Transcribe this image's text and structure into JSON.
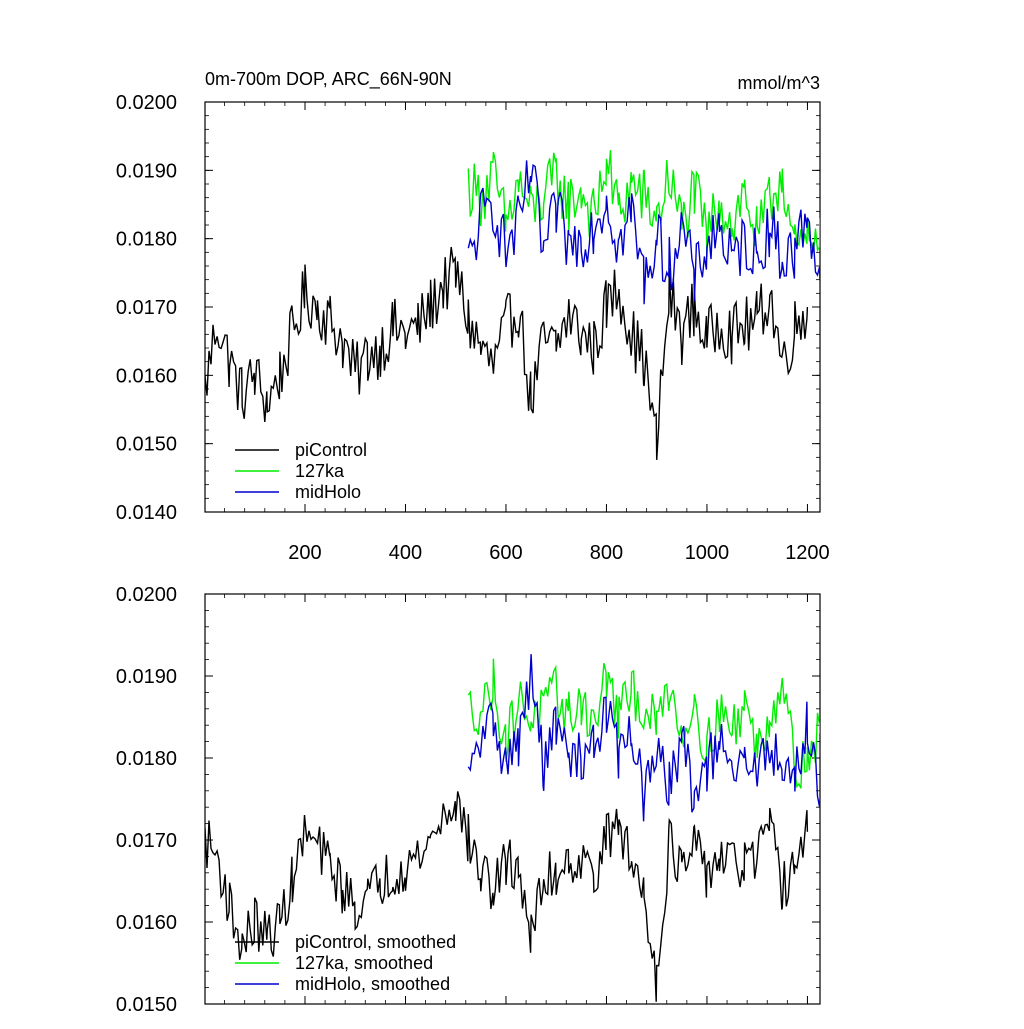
{
  "chart_data": [
    {
      "type": "line",
      "title": "0m-700m DOP, ARC_66N-90N",
      "units_label": "mmol/m^3",
      "xlim": [
        1,
        1225
      ],
      "ylim": [
        0.014,
        0.02
      ],
      "x_ticks": [
        200,
        400,
        600,
        800,
        1000,
        1200
      ],
      "x_tick_labels": [
        "200",
        "400",
        "600",
        "800",
        "1000",
        "1200"
      ],
      "y_ticks": [
        0.014,
        0.015,
        0.016,
        0.017,
        0.018,
        0.019,
        0.02
      ],
      "y_tick_labels": [
        "0.0140",
        "0.0150",
        "0.0160",
        "0.0170",
        "0.0180",
        "0.0190",
        "0.0200"
      ],
      "legend_position": "bottom-left",
      "series": [
        {
          "name": "piControl",
          "color": "#000000",
          "x": [
            1,
            25,
            50,
            75,
            100,
            125,
            150,
            175,
            200,
            225,
            250,
            275,
            300,
            325,
            350,
            375,
            400,
            425,
            450,
            475,
            500,
            525,
            550,
            575,
            600,
            625,
            650,
            675,
            700,
            725,
            750,
            775,
            800,
            825,
            850,
            875,
            900,
            925,
            950,
            975,
            1000,
            1025,
            1050,
            1075,
            1100,
            1125,
            1150,
            1175,
            1200
          ],
          "values": [
            0.0158,
            0.0168,
            0.0162,
            0.0157,
            0.016,
            0.0156,
            0.016,
            0.0166,
            0.0172,
            0.017,
            0.0168,
            0.0165,
            0.016,
            0.0163,
            0.0164,
            0.0167,
            0.0166,
            0.0167,
            0.017,
            0.0173,
            0.0175,
            0.0168,
            0.0164,
            0.0161,
            0.0167,
            0.017,
            0.0156,
            0.0165,
            0.0164,
            0.0169,
            0.0166,
            0.0164,
            0.017,
            0.0173,
            0.0166,
            0.0162,
            0.015,
            0.0172,
            0.0166,
            0.017,
            0.0165,
            0.0168,
            0.0166,
            0.0167,
            0.0168,
            0.0172,
            0.0162,
            0.0167,
            0.017
          ]
        },
        {
          "name": "127ka",
          "color": "#00ee00",
          "x": [
            525,
            550,
            575,
            600,
            625,
            650,
            675,
            700,
            725,
            750,
            775,
            800,
            825,
            850,
            875,
            900,
            925,
            950,
            975,
            1000,
            1025,
            1050,
            1075,
            1100,
            1125,
            1150,
            1175,
            1200,
            1225
          ],
          "values": [
            0.0188,
            0.0186,
            0.0189,
            0.0182,
            0.0188,
            0.0184,
            0.0186,
            0.0189,
            0.0185,
            0.0187,
            0.0183,
            0.0191,
            0.0184,
            0.0188,
            0.0186,
            0.0183,
            0.0189,
            0.0182,
            0.0187,
            0.018,
            0.0186,
            0.0182,
            0.0187,
            0.018,
            0.0185,
            0.019,
            0.0178,
            0.0179,
            0.0183
          ]
        },
        {
          "name": "midHolo",
          "color": "#0000cc",
          "x": [
            525,
            550,
            575,
            600,
            625,
            650,
            675,
            700,
            725,
            750,
            775,
            800,
            825,
            850,
            875,
            900,
            925,
            950,
            975,
            1000,
            1025,
            1050,
            1075,
            1100,
            1125,
            1150,
            1175,
            1200,
            1225
          ],
          "values": [
            0.0176,
            0.0183,
            0.0185,
            0.0178,
            0.0182,
            0.019,
            0.0178,
            0.0184,
            0.0179,
            0.018,
            0.0182,
            0.0186,
            0.0179,
            0.0184,
            0.0174,
            0.018,
            0.0176,
            0.0182,
            0.0174,
            0.0179,
            0.0182,
            0.0176,
            0.018,
            0.0177,
            0.0182,
            0.0177,
            0.0178,
            0.0184,
            0.0174
          ]
        }
      ]
    },
    {
      "type": "line",
      "title": "",
      "xlim": [
        1,
        1225
      ],
      "ylim": [
        0.015,
        0.02
      ],
      "x_ticks": [
        200,
        400,
        600,
        800,
        1000,
        1200
      ],
      "y_ticks": [
        0.015,
        0.016,
        0.017,
        0.018,
        0.019,
        0.02
      ],
      "y_tick_labels": [
        "0.0150",
        "0.0160",
        "0.0170",
        "0.0180",
        "0.0190",
        "0.0200"
      ],
      "legend_position": "bottom-left",
      "series": [
        {
          "name": "piControl, smoothed",
          "color": "#000000",
          "x": [
            1,
            25,
            50,
            75,
            100,
            125,
            150,
            175,
            200,
            225,
            250,
            275,
            300,
            325,
            350,
            375,
            400,
            425,
            450,
            475,
            500,
            525,
            550,
            575,
            600,
            625,
            650,
            675,
            700,
            725,
            750,
            775,
            800,
            825,
            850,
            875,
            900,
            925,
            950,
            975,
            1000,
            1025,
            1050,
            1075,
            1100,
            1125,
            1150,
            1175,
            1200
          ],
          "values": [
            0.017,
            0.0168,
            0.0162,
            0.0157,
            0.016,
            0.0158,
            0.016,
            0.0165,
            0.0171,
            0.0169,
            0.0167,
            0.0164,
            0.0162,
            0.0163,
            0.0165,
            0.0166,
            0.0167,
            0.0168,
            0.017,
            0.0173,
            0.0175,
            0.017,
            0.0166,
            0.0164,
            0.0167,
            0.0167,
            0.0158,
            0.0165,
            0.0166,
            0.0168,
            0.0167,
            0.0166,
            0.017,
            0.0172,
            0.0167,
            0.0164,
            0.0153,
            0.017,
            0.0166,
            0.0169,
            0.0166,
            0.0168,
            0.0167,
            0.0167,
            0.0168,
            0.0171,
            0.0164,
            0.0167,
            0.0171
          ]
        },
        {
          "name": "127ka, smoothed",
          "color": "#00ee00",
          "x": [
            525,
            550,
            575,
            600,
            625,
            650,
            675,
            700,
            725,
            750,
            775,
            800,
            825,
            850,
            875,
            900,
            925,
            950,
            975,
            1000,
            1025,
            1050,
            1075,
            1100,
            1125,
            1150,
            1175,
            1200,
            1225
          ],
          "values": [
            0.0186,
            0.0186,
            0.0189,
            0.0182,
            0.0187,
            0.0185,
            0.0186,
            0.0188,
            0.0185,
            0.0187,
            0.0184,
            0.019,
            0.0185,
            0.0188,
            0.0186,
            0.0184,
            0.0189,
            0.0183,
            0.0187,
            0.0181,
            0.0186,
            0.0183,
            0.0187,
            0.0181,
            0.0185,
            0.019,
            0.0179,
            0.018,
            0.0183
          ]
        },
        {
          "name": "midHolo, smoothed",
          "color": "#0000cc",
          "x": [
            525,
            550,
            575,
            600,
            625,
            650,
            675,
            700,
            725,
            750,
            775,
            800,
            825,
            850,
            875,
            900,
            925,
            950,
            975,
            1000,
            1025,
            1050,
            1075,
            1100,
            1125,
            1150,
            1175,
            1200,
            1225
          ],
          "values": [
            0.0177,
            0.0182,
            0.0185,
            0.0179,
            0.0182,
            0.019,
            0.0179,
            0.0184,
            0.018,
            0.018,
            0.0182,
            0.0186,
            0.018,
            0.0184,
            0.0175,
            0.018,
            0.0177,
            0.0182,
            0.0175,
            0.0179,
            0.0182,
            0.0177,
            0.018,
            0.0178,
            0.0182,
            0.0178,
            0.0178,
            0.0184,
            0.0175
          ]
        }
      ]
    }
  ]
}
